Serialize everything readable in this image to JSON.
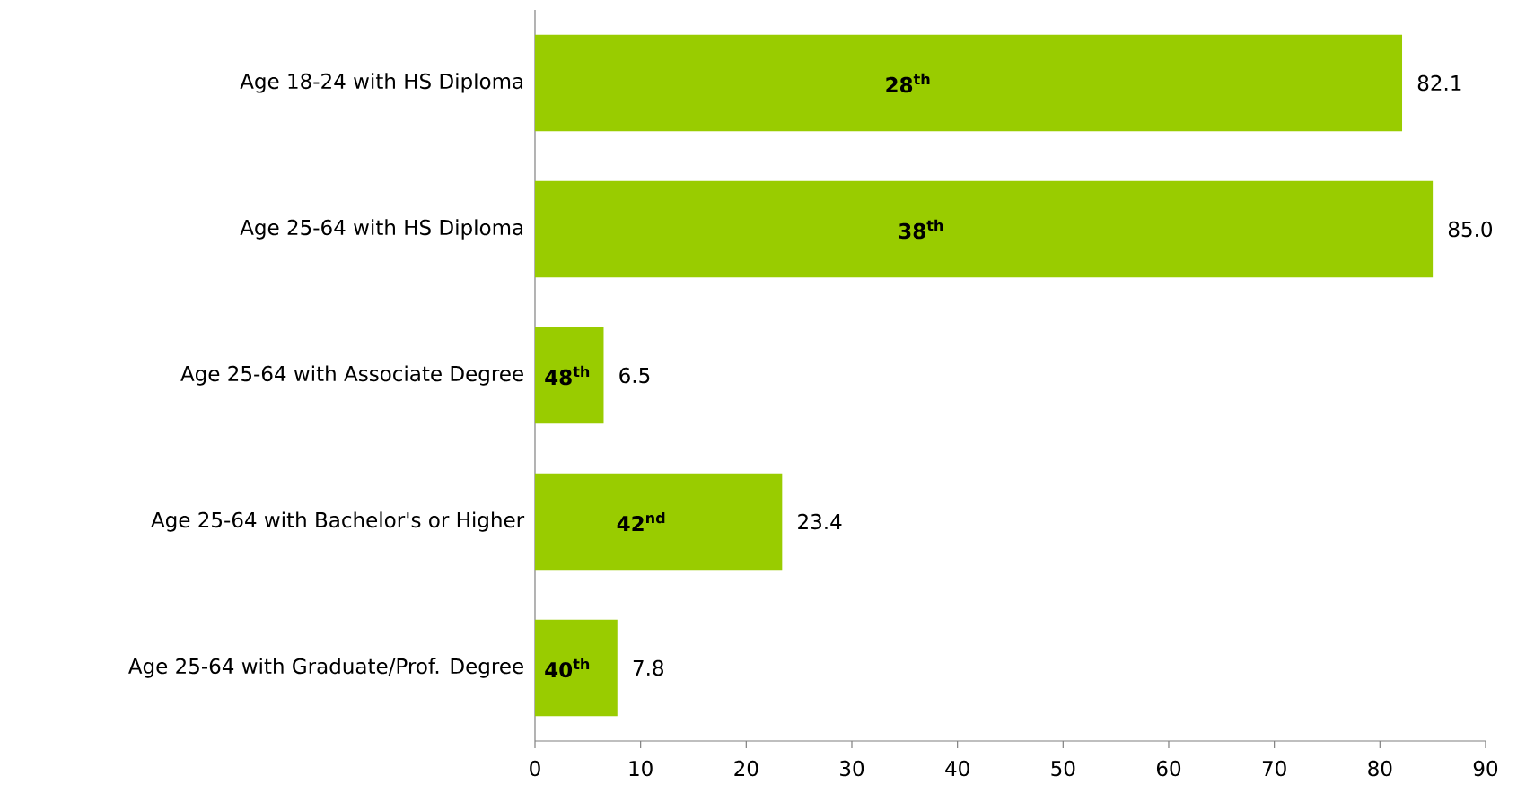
{
  "chart_data": {
    "type": "bar",
    "orientation": "horizontal",
    "categories": [
      "Age 18-24 with HS Diploma",
      "Age 25-64 with HS Diploma",
      "Age 25-64 with Associate Degree",
      "Age 25-64 with Bachelor's or Higher",
      "Age 25-64 with Graduate/Prof. Degree"
    ],
    "values": [
      82.1,
      85.0,
      6.5,
      23.4,
      7.8
    ],
    "value_labels": [
      "82.1",
      "85.0",
      "6.5",
      "23.4",
      "7.8"
    ],
    "color": "#99cc00",
    "xlim": [
      0,
      90
    ],
    "xticks": [
      0,
      10,
      20,
      30,
      40,
      50,
      60,
      70,
      80,
      90
    ],
    "grid": false,
    "annotations": [
      "28$^{th}$",
      "38$^{th}$",
      "48$^{th}$",
      "42$^{nd}$",
      "40$^{th}$"
    ]
  }
}
